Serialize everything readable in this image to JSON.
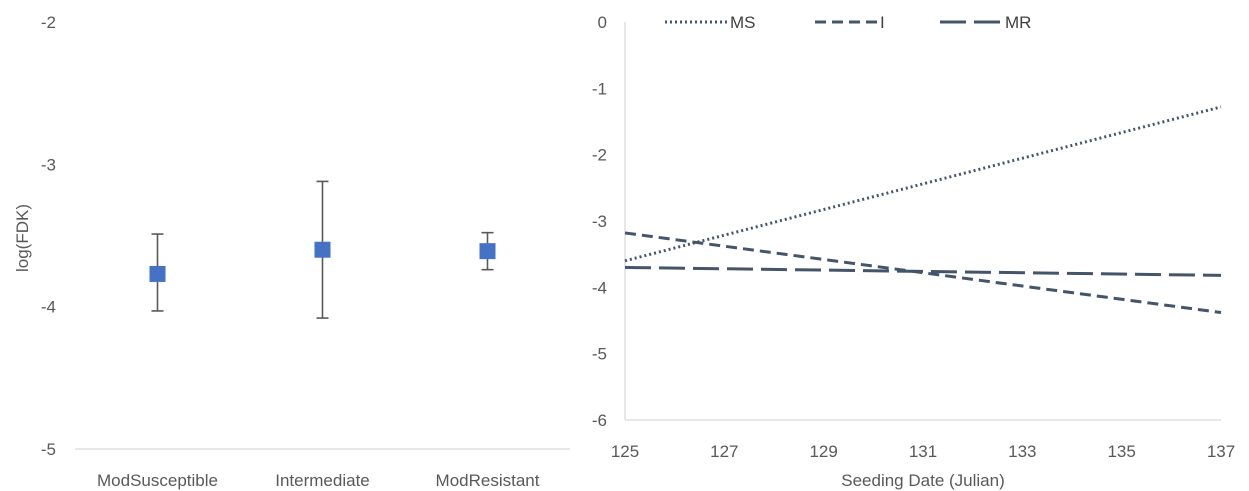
{
  "chart_data": [
    {
      "type": "scatter",
      "title": "",
      "xlabel": "",
      "ylabel": "log(FDK)",
      "ylim": [
        -5,
        -2
      ],
      "yticks": [
        -5,
        -4,
        -3,
        -2
      ],
      "categories": [
        "ModSusceptible",
        "Intermediate",
        "ModResistant"
      ],
      "series": [
        {
          "values": [
            -3.77,
            -3.6,
            -3.61
          ],
          "error_low": [
            -4.03,
            -4.08,
            -3.74
          ],
          "error_high": [
            -3.49,
            -3.12,
            -3.48
          ]
        }
      ],
      "marker": "square",
      "color": "#4472C4",
      "error_bar_color": "#595959",
      "grid": false,
      "legend": "none"
    },
    {
      "type": "line",
      "title": "",
      "xlabel": "Seeding Date (Julian)",
      "ylabel": "",
      "xlim": [
        125,
        137
      ],
      "ylim": [
        -6,
        0
      ],
      "xticks": [
        125,
        127,
        129,
        131,
        133,
        135,
        137
      ],
      "yticks": [
        -6,
        -5,
        -4,
        -3,
        -2,
        -1,
        0
      ],
      "series": [
        {
          "name": "MS",
          "dash": "dotted",
          "x": [
            125,
            137
          ],
          "y": [
            -3.6,
            -1.28
          ]
        },
        {
          "name": "I",
          "dash": "dashed",
          "x": [
            125,
            137
          ],
          "y": [
            -3.18,
            -4.38
          ]
        },
        {
          "name": "MR",
          "dash": "long-dashed",
          "x": [
            125,
            137
          ],
          "y": [
            -3.7,
            -3.82
          ]
        }
      ],
      "line_color": "#44546A",
      "grid": false,
      "legend": "top"
    }
  ]
}
